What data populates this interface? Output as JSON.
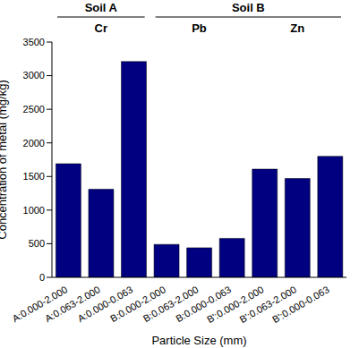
{
  "chart_data": {
    "type": "bar",
    "categories": [
      "A:0.000-2.000",
      "A:0.063-2.000",
      "A:0.000-0.063",
      "B:0.000-2.000",
      "B:0.063-2.000",
      "B:0.000-0.063",
      "B':0.000-2.000",
      "B':0.063-2.000",
      "B':0.000-0.063"
    ],
    "values": [
      1690,
      1310,
      3210,
      490,
      440,
      580,
      1610,
      1470,
      1800
    ],
    "color": "#000080",
    "xlabel": "Particle Size (mm)",
    "ylabel": "Concentration of metal (mg/kg)",
    "ylim": [
      0,
      3500
    ],
    "yticks": [
      0,
      500,
      1000,
      1500,
      2000,
      2500,
      3000,
      3500
    ],
    "groups": [
      {
        "name": "Soil A",
        "subgroups": [
          {
            "name": "Cr",
            "categories": [
              "A:0.000-2.000",
              "A:0.063-2.000",
              "A:0.000-0.063"
            ]
          }
        ]
      },
      {
        "name": "Soil B",
        "subgroups": [
          {
            "name": "Pb",
            "categories": [
              "B:0.000-2.000",
              "B:0.063-2.000",
              "B:0.000-0.063"
            ]
          },
          {
            "name": "Zn",
            "categories": [
              "B':0.000-2.000",
              "B':0.063-2.000",
              "B':0.000-0.063"
            ]
          }
        ]
      }
    ]
  }
}
